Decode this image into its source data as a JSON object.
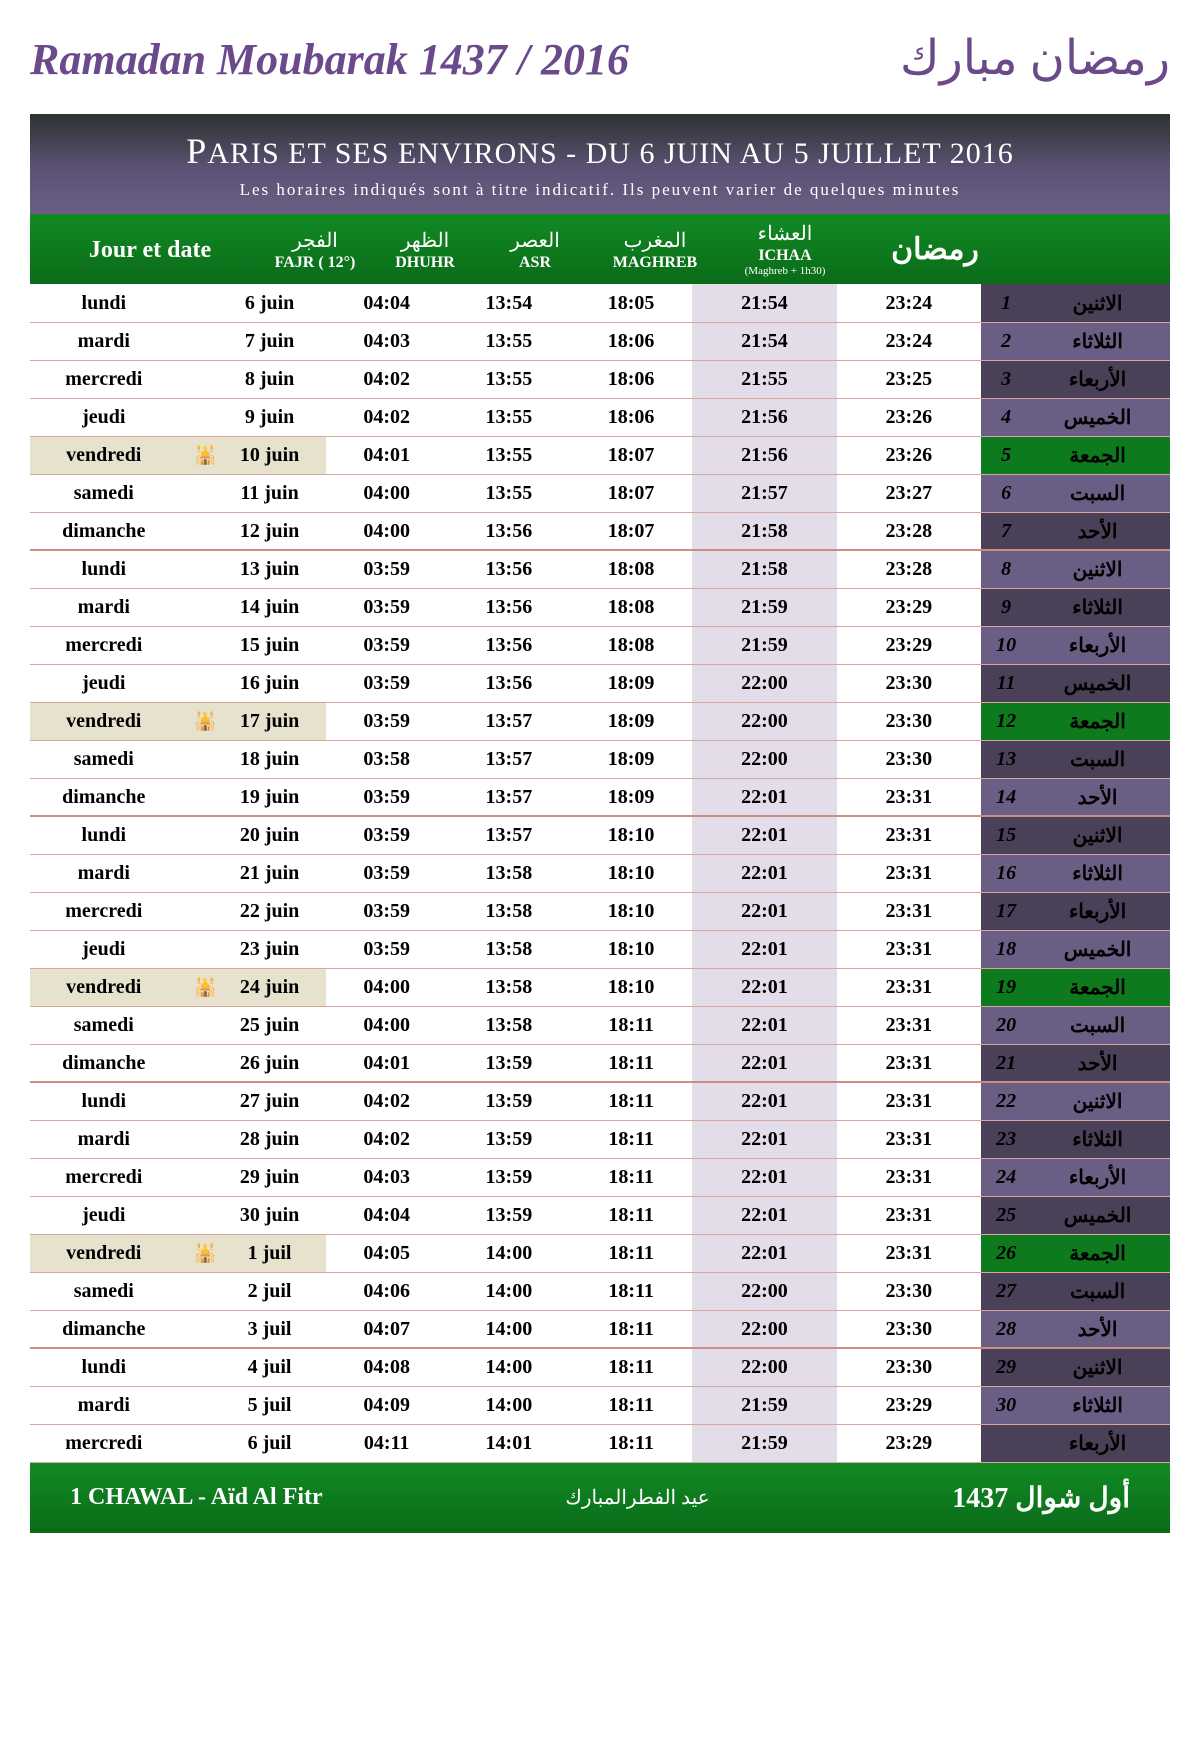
{
  "title": {
    "french": "Ramadan Moubarak 1437 / 2016",
    "arabic": "رمضان مبارك"
  },
  "banner": {
    "main_pre": "P",
    "main": "ARIS ET SES ENVIRONS - DU 6 JUIN AU 5 JUILLET 2016",
    "sub": "Les horaires indiqués sont à titre indicatif. Ils peuvent varier de quelques minutes"
  },
  "columns": {
    "jour": "Jour et date",
    "fajr_ar": "الفجر",
    "fajr_en": "FAJR ( 12°)",
    "dhuhr_ar": "الظهر",
    "dhuhr_en": "DHUHR",
    "asr_ar": "العصر",
    "asr_en": "ASR",
    "maghreb_ar": "المغرب",
    "maghreb_en": "MAGHREB",
    "ichaa_ar": "العشاء",
    "ichaa_en": "ICHAA",
    "ichaa_sub": "(Maghreb + 1h30)",
    "ramadan_ar": "رمضان"
  },
  "footer": {
    "left": "1 CHAWAL - Aïd Al Fitr",
    "middle": "عيد الفطرالمبارك",
    "right": "أول شوال 1437"
  },
  "colors": {
    "ar_dark": "#4a4158",
    "ar_light": "#6b5e84",
    "ar_friday": "#0d7a1e"
  },
  "rows": [
    {
      "day_fr": "lundi",
      "date": "6 juin",
      "fajr": "04:04",
      "dhuhr": "13:54",
      "asr": "18:05",
      "maghreb": "21:54",
      "ichaa": "23:24",
      "day_ar": "الاثنين",
      "num": "1",
      "friday": false,
      "sep": false
    },
    {
      "day_fr": "mardi",
      "date": "7 juin",
      "fajr": "04:03",
      "dhuhr": "13:55",
      "asr": "18:06",
      "maghreb": "21:54",
      "ichaa": "23:24",
      "day_ar": "الثلاثاء",
      "num": "2",
      "friday": false,
      "sep": false
    },
    {
      "day_fr": "mercredi",
      "date": "8 juin",
      "fajr": "04:02",
      "dhuhr": "13:55",
      "asr": "18:06",
      "maghreb": "21:55",
      "ichaa": "23:25",
      "day_ar": "الأربعاء",
      "num": "3",
      "friday": false,
      "sep": false
    },
    {
      "day_fr": "jeudi",
      "date": "9 juin",
      "fajr": "04:02",
      "dhuhr": "13:55",
      "asr": "18:06",
      "maghreb": "21:56",
      "ichaa": "23:26",
      "day_ar": "الخميس",
      "num": "4",
      "friday": false,
      "sep": false
    },
    {
      "day_fr": "vendredi",
      "date": "10 juin",
      "fajr": "04:01",
      "dhuhr": "13:55",
      "asr": "18:07",
      "maghreb": "21:56",
      "ichaa": "23:26",
      "day_ar": "الجمعة",
      "num": "5",
      "friday": true,
      "sep": false
    },
    {
      "day_fr": "samedi",
      "date": "11 juin",
      "fajr": "04:00",
      "dhuhr": "13:55",
      "asr": "18:07",
      "maghreb": "21:57",
      "ichaa": "23:27",
      "day_ar": "السبت",
      "num": "6",
      "friday": false,
      "sep": false
    },
    {
      "day_fr": "dimanche",
      "date": "12 juin",
      "fajr": "04:00",
      "dhuhr": "13:56",
      "asr": "18:07",
      "maghreb": "21:58",
      "ichaa": "23:28",
      "day_ar": "الأحد",
      "num": "7",
      "friday": false,
      "sep": false
    },
    {
      "day_fr": "lundi",
      "date": "13 juin",
      "fajr": "03:59",
      "dhuhr": "13:56",
      "asr": "18:08",
      "maghreb": "21:58",
      "ichaa": "23:28",
      "day_ar": "الاثنين",
      "num": "8",
      "friday": false,
      "sep": true
    },
    {
      "day_fr": "mardi",
      "date": "14 juin",
      "fajr": "03:59",
      "dhuhr": "13:56",
      "asr": "18:08",
      "maghreb": "21:59",
      "ichaa": "23:29",
      "day_ar": "الثلاثاء",
      "num": "9",
      "friday": false,
      "sep": false
    },
    {
      "day_fr": "mercredi",
      "date": "15 juin",
      "fajr": "03:59",
      "dhuhr": "13:56",
      "asr": "18:08",
      "maghreb": "21:59",
      "ichaa": "23:29",
      "day_ar": "الأربعاء",
      "num": "10",
      "friday": false,
      "sep": false
    },
    {
      "day_fr": "jeudi",
      "date": "16 juin",
      "fajr": "03:59",
      "dhuhr": "13:56",
      "asr": "18:09",
      "maghreb": "22:00",
      "ichaa": "23:30",
      "day_ar": "الخميس",
      "num": "11",
      "friday": false,
      "sep": false
    },
    {
      "day_fr": "vendredi",
      "date": "17 juin",
      "fajr": "03:59",
      "dhuhr": "13:57",
      "asr": "18:09",
      "maghreb": "22:00",
      "ichaa": "23:30",
      "day_ar": "الجمعة",
      "num": "12",
      "friday": true,
      "sep": false
    },
    {
      "day_fr": "samedi",
      "date": "18 juin",
      "fajr": "03:58",
      "dhuhr": "13:57",
      "asr": "18:09",
      "maghreb": "22:00",
      "ichaa": "23:30",
      "day_ar": "السبت",
      "num": "13",
      "friday": false,
      "sep": false
    },
    {
      "day_fr": "dimanche",
      "date": "19 juin",
      "fajr": "03:59",
      "dhuhr": "13:57",
      "asr": "18:09",
      "maghreb": "22:01",
      "ichaa": "23:31",
      "day_ar": "الأحد",
      "num": "14",
      "friday": false,
      "sep": false
    },
    {
      "day_fr": "lundi",
      "date": "20 juin",
      "fajr": "03:59",
      "dhuhr": "13:57",
      "asr": "18:10",
      "maghreb": "22:01",
      "ichaa": "23:31",
      "day_ar": "الاثنين",
      "num": "15",
      "friday": false,
      "sep": true
    },
    {
      "day_fr": "mardi",
      "date": "21 juin",
      "fajr": "03:59",
      "dhuhr": "13:58",
      "asr": "18:10",
      "maghreb": "22:01",
      "ichaa": "23:31",
      "day_ar": "الثلاثاء",
      "num": "16",
      "friday": false,
      "sep": false
    },
    {
      "day_fr": "mercredi",
      "date": "22 juin",
      "fajr": "03:59",
      "dhuhr": "13:58",
      "asr": "18:10",
      "maghreb": "22:01",
      "ichaa": "23:31",
      "day_ar": "الأربعاء",
      "num": "17",
      "friday": false,
      "sep": false
    },
    {
      "day_fr": "jeudi",
      "date": "23 juin",
      "fajr": "03:59",
      "dhuhr": "13:58",
      "asr": "18:10",
      "maghreb": "22:01",
      "ichaa": "23:31",
      "day_ar": "الخميس",
      "num": "18",
      "friday": false,
      "sep": false
    },
    {
      "day_fr": "vendredi",
      "date": "24 juin",
      "fajr": "04:00",
      "dhuhr": "13:58",
      "asr": "18:10",
      "maghreb": "22:01",
      "ichaa": "23:31",
      "day_ar": "الجمعة",
      "num": "19",
      "friday": true,
      "sep": false
    },
    {
      "day_fr": "samedi",
      "date": "25 juin",
      "fajr": "04:00",
      "dhuhr": "13:58",
      "asr": "18:11",
      "maghreb": "22:01",
      "ichaa": "23:31",
      "day_ar": "السبت",
      "num": "20",
      "friday": false,
      "sep": false
    },
    {
      "day_fr": "dimanche",
      "date": "26 juin",
      "fajr": "04:01",
      "dhuhr": "13:59",
      "asr": "18:11",
      "maghreb": "22:01",
      "ichaa": "23:31",
      "day_ar": "الأحد",
      "num": "21",
      "friday": false,
      "sep": false
    },
    {
      "day_fr": "lundi",
      "date": "27 juin",
      "fajr": "04:02",
      "dhuhr": "13:59",
      "asr": "18:11",
      "maghreb": "22:01",
      "ichaa": "23:31",
      "day_ar": "الاثنين",
      "num": "22",
      "friday": false,
      "sep": true
    },
    {
      "day_fr": "mardi",
      "date": "28 juin",
      "fajr": "04:02",
      "dhuhr": "13:59",
      "asr": "18:11",
      "maghreb": "22:01",
      "ichaa": "23:31",
      "day_ar": "الثلاثاء",
      "num": "23",
      "friday": false,
      "sep": false
    },
    {
      "day_fr": "mercredi",
      "date": "29 juin",
      "fajr": "04:03",
      "dhuhr": "13:59",
      "asr": "18:11",
      "maghreb": "22:01",
      "ichaa": "23:31",
      "day_ar": "الأربعاء",
      "num": "24",
      "friday": false,
      "sep": false
    },
    {
      "day_fr": "jeudi",
      "date": "30 juin",
      "fajr": "04:04",
      "dhuhr": "13:59",
      "asr": "18:11",
      "maghreb": "22:01",
      "ichaa": "23:31",
      "day_ar": "الخميس",
      "num": "25",
      "friday": false,
      "sep": false
    },
    {
      "day_fr": "vendredi",
      "date": "1 juil",
      "fajr": "04:05",
      "dhuhr": "14:00",
      "asr": "18:11",
      "maghreb": "22:01",
      "ichaa": "23:31",
      "day_ar": "الجمعة",
      "num": "26",
      "friday": true,
      "sep": false
    },
    {
      "day_fr": "samedi",
      "date": "2 juil",
      "fajr": "04:06",
      "dhuhr": "14:00",
      "asr": "18:11",
      "maghreb": "22:00",
      "ichaa": "23:30",
      "day_ar": "السبت",
      "num": "27",
      "friday": false,
      "sep": false
    },
    {
      "day_fr": "dimanche",
      "date": "3 juil",
      "fajr": "04:07",
      "dhuhr": "14:00",
      "asr": "18:11",
      "maghreb": "22:00",
      "ichaa": "23:30",
      "day_ar": "الأحد",
      "num": "28",
      "friday": false,
      "sep": false
    },
    {
      "day_fr": "lundi",
      "date": "4 juil",
      "fajr": "04:08",
      "dhuhr": "14:00",
      "asr": "18:11",
      "maghreb": "22:00",
      "ichaa": "23:30",
      "day_ar": "الاثنين",
      "num": "29",
      "friday": false,
      "sep": true
    },
    {
      "day_fr": "mardi",
      "date": "5 juil",
      "fajr": "04:09",
      "dhuhr": "14:00",
      "asr": "18:11",
      "maghreb": "21:59",
      "ichaa": "23:29",
      "day_ar": "الثلاثاء",
      "num": "30",
      "friday": false,
      "sep": false
    },
    {
      "day_fr": "mercredi",
      "date": "6 juil",
      "fajr": "04:11",
      "dhuhr": "14:01",
      "asr": "18:11",
      "maghreb": "21:59",
      "ichaa": "23:29",
      "day_ar": "الأربعاء",
      "num": "",
      "friday": false,
      "sep": false
    }
  ]
}
